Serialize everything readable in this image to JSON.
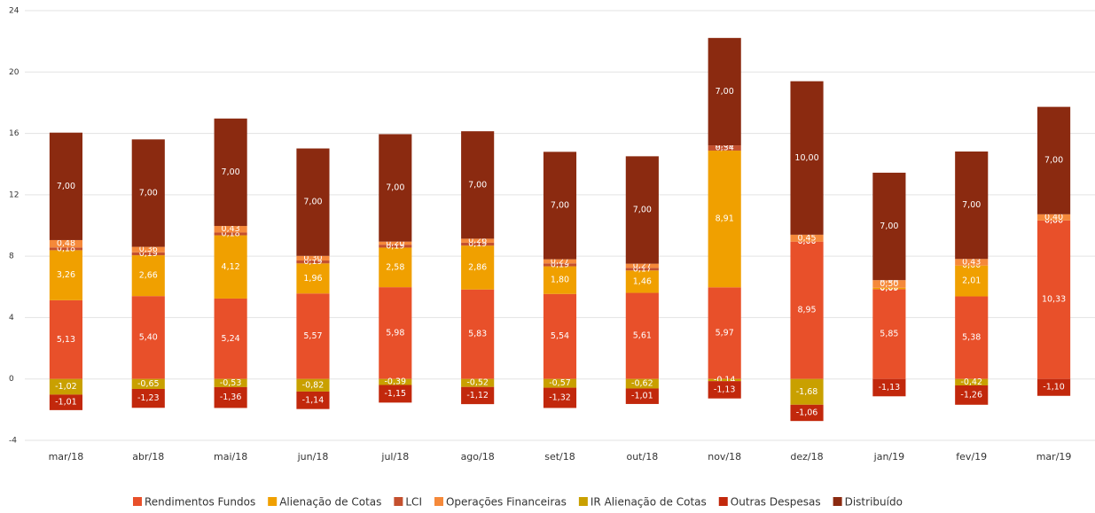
{
  "chart_data": {
    "type": "stacked-bar",
    "categories": [
      "mar/18",
      "abr/18",
      "mai/18",
      "jun/18",
      "jul/18",
      "ago/18",
      "set/18",
      "out/18",
      "nov/18",
      "dez/18",
      "jan/19",
      "fev/19",
      "mar/19"
    ],
    "series": [
      {
        "name": "Rendimentos Fundos",
        "color": "#e8502a",
        "values": [
          5.13,
          5.4,
          5.24,
          5.57,
          5.98,
          5.83,
          5.54,
          5.61,
          5.97,
          8.95,
          5.85,
          5.38,
          10.33
        ],
        "value_labels": [
          "5,13",
          "5,40",
          "5,24",
          "5,57",
          "5,98",
          "5,83",
          "5,54",
          "5,61",
          "5,97",
          "8,95",
          "5,85",
          "5,38",
          "10,33"
        ]
      },
      {
        "name": "Alienação de Cotas",
        "color": "#f0a000",
        "values": [
          3.26,
          2.66,
          4.12,
          1.96,
          2.58,
          2.86,
          1.8,
          1.46,
          8.91,
          0,
          0.09,
          2.01,
          0
        ],
        "value_labels": [
          "3,26",
          "2,66",
          "4,12",
          "1,96",
          "2,58",
          "2,86",
          "1,80",
          "1,46",
          "8,91",
          "0,00",
          "0,09",
          "2,01",
          "0,00"
        ]
      },
      {
        "name": "LCI",
        "color": "#c4502e",
        "values": [
          0.18,
          0.19,
          0.18,
          0.19,
          0.19,
          0.19,
          0.19,
          0.17,
          0.34,
          0,
          0,
          0,
          0
        ],
        "value_labels": [
          "0,18",
          "0,19",
          "0,18",
          "0,19",
          "0,19",
          "0,19",
          "0,19",
          "0,17",
          "0,34",
          "0,00",
          "0,00",
          "0,00",
          "0,00"
        ]
      },
      {
        "name": "Operações Financeiras",
        "color": "#f5893a",
        "values": [
          0.48,
          0.36,
          0.43,
          0.3,
          0.2,
          0.26,
          0.27,
          0.27,
          0,
          0.45,
          0.5,
          0.43,
          0.4
        ],
        "value_labels": [
          "0,48",
          "0,36",
          "0,43",
          "0,30",
          "0,20",
          "0,26",
          "0,27",
          "0,27",
          "0,00",
          "0,45",
          "0,50",
          "0,43",
          "0,40"
        ]
      },
      {
        "name": "IR Alienação de Cotas",
        "color": "#c9a000",
        "values": [
          -1.02,
          -0.65,
          -0.53,
          -0.82,
          -0.39,
          -0.52,
          -0.57,
          -0.62,
          -0.14,
          -1.68,
          0,
          -0.42,
          null
        ],
        "value_labels": [
          "-1,02",
          "-0,65",
          "-0,53",
          "-0,82",
          "-0,39",
          "-0,52",
          "-0,57",
          "-0,62",
          "-0,14",
          "-1,68",
          "0,00",
          "-0,42",
          null
        ]
      },
      {
        "name": "Outras Despesas",
        "color": "#c2280c",
        "values": [
          -1.01,
          -1.23,
          -1.36,
          -1.14,
          -1.15,
          -1.12,
          -1.32,
          -1.01,
          -1.13,
          -1.06,
          -1.13,
          -1.26,
          -1.1
        ],
        "value_labels": [
          "-1,01",
          "-1,23",
          "-1,36",
          "-1,14",
          "-1,15",
          "-1,12",
          "-1,32",
          "-1,01",
          "-1,13",
          "-1,06",
          "-1,13",
          "-1,26",
          "-1,10"
        ]
      },
      {
        "name": "Distribuído",
        "color": "#8b2a10",
        "values": [
          7,
          7,
          7,
          7,
          7,
          7,
          7,
          7,
          7,
          10,
          7,
          7,
          7
        ],
        "value_labels": [
          "7,00",
          "7,00",
          "7,00",
          "7,00",
          "7,00",
          "7,00",
          "7,00",
          "7,00",
          "7,00",
          "10,00",
          "7,00",
          "7,00",
          "7,00"
        ]
      }
    ],
    "ylim": [
      -4,
      24
    ],
    "yticks": [
      -4,
      0,
      4,
      8,
      12,
      16,
      20,
      24
    ],
    "grid": true
  }
}
